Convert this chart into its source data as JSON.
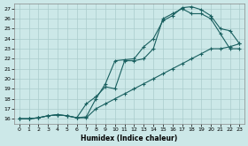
{
  "xlabel": "Humidex (Indice chaleur)",
  "xlim": [
    -0.5,
    23.5
  ],
  "ylim": [
    15.5,
    27.5
  ],
  "xticks": [
    0,
    1,
    2,
    3,
    4,
    5,
    6,
    7,
    8,
    9,
    10,
    11,
    12,
    13,
    14,
    15,
    16,
    17,
    18,
    19,
    20,
    21,
    22,
    23
  ],
  "yticks": [
    16,
    17,
    18,
    19,
    20,
    21,
    22,
    23,
    24,
    25,
    26,
    27
  ],
  "bg_color": "#cce8e8",
  "line_color": "#1a6060",
  "grid_color": "#aacccc",
  "line1_x": [
    0,
    1,
    2,
    3,
    4,
    5,
    6,
    7,
    8,
    9,
    10,
    11,
    12,
    13,
    14,
    15,
    16,
    17,
    18,
    19,
    20,
    21,
    22,
    23
  ],
  "line1_y": [
    16,
    16,
    16.1,
    16.3,
    16.4,
    16.3,
    16.1,
    16.2,
    18.0,
    19.5,
    21.8,
    21.9,
    22.0,
    23.2,
    24.0,
    25.8,
    26.3,
    27.1,
    27.2,
    26.9,
    26.3,
    25.0,
    24.8,
    23.5
  ],
  "line2_x": [
    0,
    1,
    2,
    3,
    4,
    5,
    6,
    7,
    8,
    9,
    10,
    11,
    12,
    13,
    14,
    15,
    16,
    17,
    18,
    19,
    20,
    21,
    22,
    23
  ],
  "line2_y": [
    16,
    16,
    16.1,
    16.3,
    16.4,
    16.3,
    16.1,
    17.5,
    18.2,
    19.2,
    19.0,
    21.8,
    21.8,
    22.0,
    23.0,
    26.0,
    26.5,
    27.0,
    26.5,
    26.5,
    26.0,
    24.5,
    23.0,
    23.0
  ],
  "line3_x": [
    0,
    1,
    2,
    3,
    4,
    5,
    6,
    7,
    8,
    9,
    10,
    11,
    12,
    13,
    14,
    15,
    16,
    17,
    18,
    19,
    20,
    21,
    22,
    23
  ],
  "line3_y": [
    16,
    16,
    16.1,
    16.3,
    16.4,
    16.3,
    16.1,
    16.1,
    17.0,
    17.5,
    18.0,
    18.5,
    19.0,
    19.5,
    20.0,
    20.5,
    21.0,
    21.5,
    22.0,
    22.5,
    23.0,
    23.0,
    23.2,
    23.5
  ]
}
